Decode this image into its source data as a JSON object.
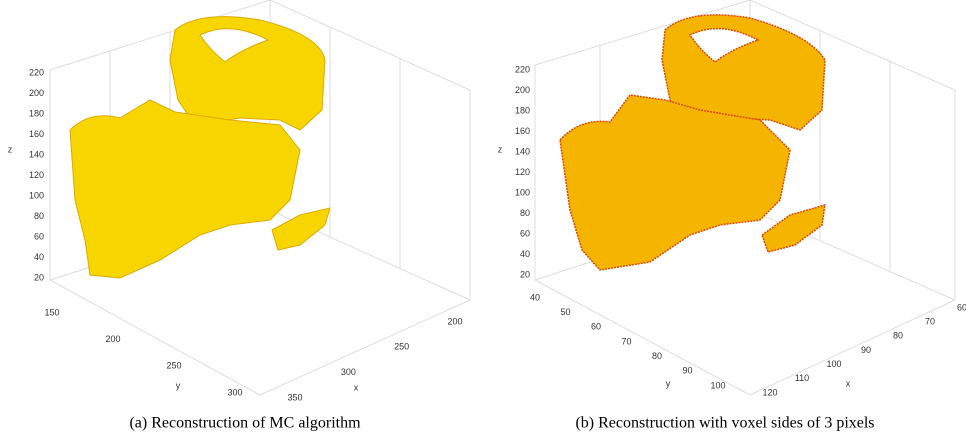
{
  "panels": [
    {
      "caption": "(a) Reconstruction of MC algorithm",
      "zlabel": "z",
      "ylabel": "y",
      "xlabel": "x",
      "zticks": [
        20,
        40,
        60,
        80,
        100,
        120,
        140,
        160,
        180,
        200,
        220
      ],
      "yticks": [
        150,
        200,
        250,
        300
      ],
      "xticks": [
        200,
        250,
        300,
        350
      ]
    },
    {
      "caption": "(b) Reconstruction with voxel sides of 3 pixels",
      "zlabel": "z",
      "ylabel": "y",
      "xlabel": "x",
      "zticks": [
        20,
        40,
        60,
        80,
        100,
        120,
        140,
        160,
        180,
        200,
        220
      ],
      "yticks": [
        40,
        50,
        60,
        70,
        80,
        90,
        100
      ],
      "xticks": [
        60,
        70,
        80,
        90,
        100,
        110,
        120
      ]
    }
  ]
}
